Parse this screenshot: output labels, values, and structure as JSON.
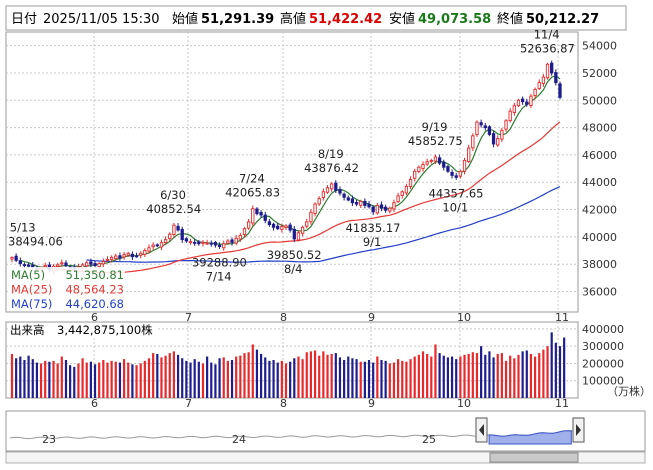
{
  "header": {
    "date_label": "日付",
    "datetime": "2025/11/05 15:30",
    "open_label": "始値",
    "open": "51,291.39",
    "high_label": "高値",
    "high": "51,422.42",
    "low_label": "安値",
    "low": "49,073.58",
    "close_label": "終値",
    "close": "50,212.27"
  },
  "colors": {
    "up": "#e8292b",
    "down": "#1d1d8e",
    "ma5": "#2e7d32",
    "ma25": "#e53935",
    "ma75": "#2340c8",
    "high_value": "#d80000",
    "low_value": "#1a7a1a",
    "grid": "#c8c8c8",
    "nav_fill": "#9fb0ea"
  },
  "chart_data": [
    {
      "type": "candlestick",
      "name": "price",
      "x_ticks": [
        "6",
        "7",
        "8",
        "9",
        "10",
        "11"
      ],
      "ylim": [
        34500,
        55000
      ],
      "y_ticks": [
        "54000",
        "52000",
        "50000",
        "48000",
        "46000",
        "44000",
        "42000",
        "40000",
        "38000",
        "36000"
      ],
      "grid": true,
      "legend_position": "bottom-left",
      "close": [
        38494.06,
        38280,
        38050,
        37900,
        37850,
        37780,
        37650,
        37740,
        37900,
        37600,
        37850,
        37950,
        38100,
        37900,
        37750,
        37650,
        37800,
        37950,
        38100,
        38000,
        37900,
        38050,
        38200,
        38350,
        38500,
        38600,
        38450,
        38700,
        38800,
        38550,
        38600,
        38800,
        39000,
        39200,
        39400,
        39350,
        39580,
        39800,
        40200,
        40852.54,
        40500,
        39800,
        39700,
        39650,
        39550,
        39500,
        39600,
        39550,
        39500,
        39400,
        39288.9,
        39500,
        39700,
        39600,
        39900,
        40100,
        40600,
        41100,
        42065.83,
        41700,
        41600,
        41200,
        40900,
        40700,
        40600,
        40750,
        40800,
        40500,
        39850.52,
        40300,
        40700,
        41100,
        41800,
        42400,
        42800,
        43300,
        43600,
        43876.42,
        43400,
        43200,
        42900,
        42700,
        42500,
        42400,
        42600,
        42300,
        42200,
        41835.17,
        42300,
        42100,
        41950,
        42100,
        42500,
        43000,
        43300,
        43700,
        44200,
        44800,
        45100,
        45300,
        45500,
        45600,
        45852.75,
        45400,
        45100,
        44800,
        44500,
        44357.65,
        44800,
        45600,
        46500,
        47400,
        48400,
        48200,
        48000,
        47500,
        46800,
        47200,
        47800,
        48500,
        49200,
        49600,
        50000,
        49900,
        49700,
        50300,
        50800,
        51300,
        51700,
        52636.87,
        52000,
        51291.39,
        50212.27
      ],
      "events": [
        {
          "label": "5/13",
          "value": "38494.06",
          "placement": "above"
        },
        {
          "label": "6/30",
          "value": "40852.54",
          "placement": "above"
        },
        {
          "label": "7/14",
          "value": "39288.90",
          "placement": "below"
        },
        {
          "label": "7/24",
          "value": "42065.83",
          "placement": "above"
        },
        {
          "label": "8/4",
          "value": "39850.52",
          "placement": "below"
        },
        {
          "label": "8/19",
          "value": "43876.42",
          "placement": "above"
        },
        {
          "label": "9/1",
          "value": "41835.17",
          "placement": "below"
        },
        {
          "label": "9/19",
          "value": "45852.75",
          "placement": "above"
        },
        {
          "label": "10/1",
          "value": "44357.65",
          "placement": "below"
        },
        {
          "label": "11/4",
          "value": "52636.87",
          "placement": "above"
        }
      ],
      "series": [
        {
          "name": "MA(5)",
          "value": "51,350.81"
        },
        {
          "name": "MA(25)",
          "value": "48,564.23"
        },
        {
          "name": "MA(75)",
          "value": "44,620.68"
        }
      ]
    },
    {
      "type": "bar",
      "name": "volume",
      "title": "出来高",
      "value": "3,442,875,100株",
      "unit": "（万株）",
      "x_ticks": [
        "6",
        "7",
        "8",
        "9",
        "10",
        "11"
      ],
      "ylim": [
        0,
        440000
      ],
      "y_ticks": [
        "400000",
        "300000",
        "200000",
        "100000"
      ],
      "values": [
        255000,
        230000,
        240000,
        220000,
        245000,
        225000,
        205000,
        200000,
        215000,
        210000,
        215000,
        200000,
        240000,
        220000,
        190000,
        180000,
        200000,
        230000,
        205000,
        210000,
        195000,
        205000,
        220000,
        205000,
        215000,
        210000,
        205000,
        225000,
        205000,
        195000,
        190000,
        200000,
        215000,
        230000,
        260000,
        255000,
        235000,
        245000,
        260000,
        270000,
        250000,
        230000,
        215000,
        205000,
        225000,
        210000,
        200000,
        240000,
        205000,
        195000,
        230000,
        235000,
        215000,
        220000,
        240000,
        245000,
        260000,
        265000,
        310000,
        280000,
        255000,
        235000,
        215000,
        220000,
        205000,
        215000,
        200000,
        210000,
        230000,
        240000,
        225000,
        265000,
        270000,
        275000,
        245000,
        270000,
        250000,
        255000,
        260000,
        235000,
        220000,
        240000,
        230000,
        225000,
        210000,
        210000,
        220000,
        205000,
        240000,
        220000,
        215000,
        200000,
        205000,
        225000,
        215000,
        210000,
        225000,
        240000,
        250000,
        270000,
        255000,
        240000,
        310000,
        260000,
        245000,
        235000,
        240000,
        225000,
        240000,
        250000,
        255000,
        265000,
        260000,
        300000,
        250000,
        270000,
        235000,
        255000,
        260000,
        215000,
        245000,
        230000,
        250000,
        270000,
        275000,
        255000,
        240000,
        260000,
        280000,
        300000,
        380000,
        320000,
        300000,
        350000
      ]
    },
    {
      "type": "area",
      "name": "navigator",
      "x_ticks": [
        "23",
        "24",
        "25"
      ]
    }
  ]
}
